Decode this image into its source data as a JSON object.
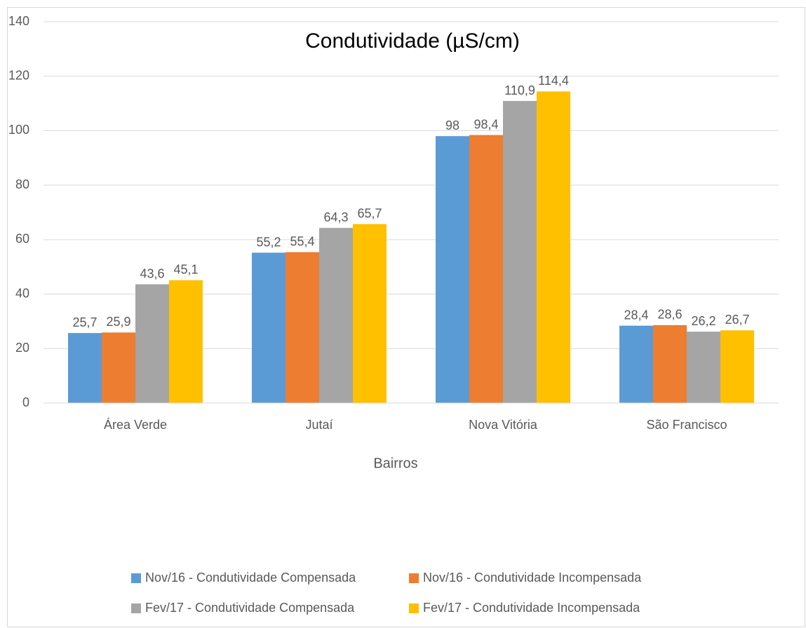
{
  "chart_data": {
    "type": "bar",
    "title": "Condutividade (µS/cm)",
    "x_label": "Bairros",
    "categories": [
      "Área Verde",
      "Jutaí",
      "Nova Vitória",
      "São Francisco"
    ],
    "series": [
      {
        "name": "Nov/16 - Condutividade Compensada",
        "color": "#5b9bd5",
        "values": [
          25.7,
          55.2,
          98,
          28.4
        ],
        "value_labels": [
          "25,7",
          "55,2",
          "98",
          "28,4"
        ]
      },
      {
        "name": "Nov/16 - Condutividade Incompensada",
        "color": "#ed7d31",
        "values": [
          25.9,
          55.4,
          98.4,
          28.6
        ],
        "value_labels": [
          "25,9",
          "55,4",
          "98,4",
          "28,6"
        ]
      },
      {
        "name": "Fev/17 - Condutividade Compensada",
        "color": "#a5a5a5",
        "values": [
          43.6,
          64.3,
          110.9,
          26.2
        ],
        "value_labels": [
          "43,6",
          "64,3",
          "110,9",
          "26,2"
        ]
      },
      {
        "name": "Fev/17 - Condutividade Incompensada",
        "color": "#ffc000",
        "values": [
          45.1,
          65.7,
          114.4,
          26.7
        ],
        "value_labels": [
          "45,1",
          "65,7",
          "114,4",
          "26,7"
        ]
      }
    ],
    "ylim": [
      0,
      140
    ],
    "yticks": [
      0,
      20,
      40,
      60,
      80,
      100,
      120,
      140
    ],
    "grid": true,
    "legend": "bottom"
  }
}
